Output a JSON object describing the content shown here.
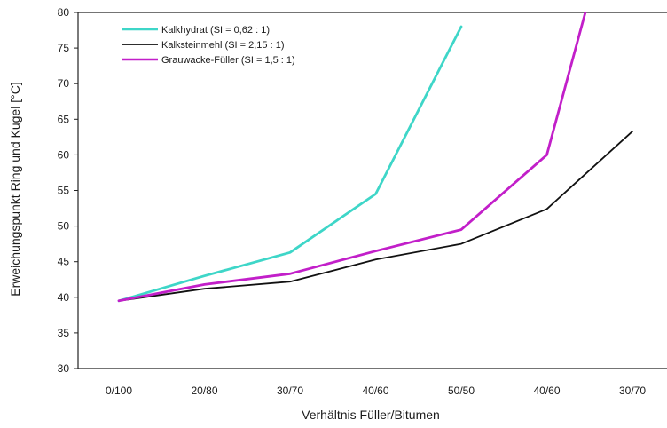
{
  "chart_data": {
    "type": "line",
    "xlabel": "Verhältnis Füller/Bitumen",
    "ylabel": "Erweichungspunkt Ring und Kugel [°C]",
    "categories": [
      "0/100",
      "20/80",
      "30/70",
      "40/60",
      "50/50",
      "40/60",
      "30/70"
    ],
    "ylim": [
      30,
      80
    ],
    "yticks": [
      30,
      35,
      40,
      45,
      50,
      55,
      60,
      65,
      70,
      75,
      80
    ],
    "grid": false,
    "legend_position": "top-left",
    "series": [
      {
        "name": "Kalkhydrat (SI = 0,62 : 1)",
        "color": "#3ed6c8",
        "x": [
          0,
          1,
          2,
          3,
          4
        ],
        "values": [
          39.5,
          43.0,
          46.3,
          54.5,
          78.0
        ]
      },
      {
        "name": "Kalksteinmehl (SI = 2,15 : 1)",
        "color": "#111111",
        "x": [
          0,
          1,
          2,
          3,
          4,
          5,
          6
        ],
        "values": [
          39.5,
          41.2,
          42.2,
          45.3,
          47.5,
          52.4,
          63.3
        ]
      },
      {
        "name": "Grauwacke-Füller (SI = 1,5 : 1)",
        "color": "#c21fc9",
        "x": [
          0,
          1,
          2,
          3,
          4,
          5,
          5.45
        ],
        "values": [
          39.5,
          41.8,
          43.3,
          46.5,
          49.5,
          60.0,
          80.0
        ]
      }
    ]
  }
}
